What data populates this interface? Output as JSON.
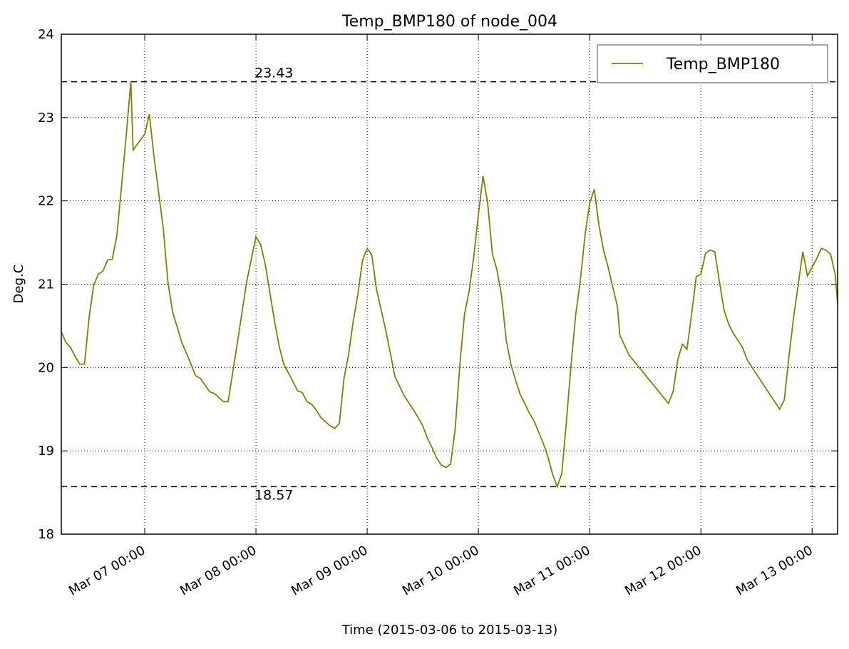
{
  "chart_data": {
    "type": "line",
    "title": "Temp_BMP180 of node_004",
    "xlabel": "Time (2015-03-06 to 2015-03-13)",
    "ylabel": "Deg.C",
    "x": [
      "Mar 06 06:00",
      "Mar 06 07:00",
      "Mar 06 08:00",
      "Mar 06 09:00",
      "Mar 06 10:00",
      "Mar 06 11:00",
      "Mar 06 12:00",
      "Mar 06 13:00",
      "Mar 06 14:00",
      "Mar 06 15:00",
      "Mar 06 16:00",
      "Mar 06 17:00",
      "Mar 06 18:00",
      "Mar 06 19:00",
      "Mar 06 20:00",
      "Mar 06 21:00",
      "Mar 06 21:30",
      "Mar 07 00:00",
      "Mar 07 01:00",
      "Mar 07 02:00",
      "Mar 07 03:00",
      "Mar 07 04:00",
      "Mar 07 05:00",
      "Mar 07 06:00",
      "Mar 07 08:00",
      "Mar 07 10:00",
      "Mar 07 11:00",
      "Mar 07 12:00",
      "Mar 07 14:00",
      "Mar 07 15:00",
      "Mar 07 17:00",
      "Mar 07 18:00",
      "Mar 07 20:00",
      "Mar 07 22:00",
      "Mar 08 00:00",
      "Mar 08 01:00",
      "Mar 08 02:00",
      "Mar 08 04:00",
      "Mar 08 05:00",
      "Mar 08 06:00",
      "Mar 08 08:00",
      "Mar 08 09:00",
      "Mar 08 10:00",
      "Mar 08 11:00",
      "Mar 08 12:00",
      "Mar 08 13:00",
      "Mar 08 14:00",
      "Mar 08 16:00",
      "Mar 08 17:00",
      "Mar 08 18:00",
      "Mar 08 19:00",
      "Mar 08 20:00",
      "Mar 08 21:00",
      "Mar 08 22:00",
      "Mar 08 23:00",
      "Mar 09 00:00",
      "Mar 09 01:00",
      "Mar 09 02:00",
      "Mar 09 04:00",
      "Mar 09 06:00",
      "Mar 09 08:00",
      "Mar 09 10:00",
      "Mar 09 11:00",
      "Mar 09 12:00",
      "Mar 09 13:00",
      "Mar 09 14:00",
      "Mar 09 15:00",
      "Mar 09 16:00",
      "Mar 09 17:00",
      "Mar 09 18:00",
      "Mar 09 19:00",
      "Mar 09 20:00",
      "Mar 09 21:00",
      "Mar 09 22:00",
      "Mar 09 23:00",
      "Mar 10 00:00",
      "Mar 10 01:00",
      "Mar 10 02:00",
      "Mar 10 03:00",
      "Mar 10 04:00",
      "Mar 10 05:00",
      "Mar 10 06:00",
      "Mar 10 07:00",
      "Mar 10 08:00",
      "Mar 10 09:00",
      "Mar 10 10:00",
      "Mar 10 11:00",
      "Mar 10 12:00",
      "Mar 10 14:00",
      "Mar 10 15:00",
      "Mar 10 16:00",
      "Mar 10 17:00",
      "Mar 10 18:00",
      "Mar 10 19:00",
      "Mar 10 20:00",
      "Mar 10 21:00",
      "Mar 10 22:00",
      "Mar 10 23:00",
      "Mar 11 00:00",
      "Mar 11 01:00",
      "Mar 11 02:00",
      "Mar 11 03:00",
      "Mar 11 04:00",
      "Mar 11 06:00",
      "Mar 11 06:30",
      "Mar 11 08:30",
      "Mar 11 17:00",
      "Mar 11 18:00",
      "Mar 11 19:00",
      "Mar 11 20:00",
      "Mar 11 21:00",
      "Mar 11 22:00",
      "Mar 11 23:00",
      "Mar 12 00:00",
      "Mar 12 01:00",
      "Mar 12 02:00",
      "Mar 12 03:00",
      "Mar 12 04:00",
      "Mar 12 05:00",
      "Mar 12 06:00",
      "Mar 12 07:00",
      "Mar 12 09:00",
      "Mar 12 10:00",
      "Mar 12 17:00",
      "Mar 12 18:00",
      "Mar 12 19:00",
      "Mar 12 20:00",
      "Mar 12 21:00",
      "Mar 12 22:00",
      "Mar 12 23:00",
      "Mar 13 00:00",
      "Mar 13 01:00",
      "Mar 13 02:00",
      "Mar 13 03:00",
      "Mar 13 04:00",
      "Mar 13 05:00",
      "Mar 13 05:30"
    ],
    "series": [
      {
        "name": "Temp_BMP180",
        "color": "#808000",
        "values": [
          20.43,
          20.3,
          20.24,
          20.13,
          20.04,
          20.04,
          20.6,
          20.99,
          21.12,
          21.16,
          21.29,
          21.3,
          21.59,
          22.18,
          22.78,
          23.43,
          22.61,
          22.8,
          23.04,
          22.53,
          22.1,
          21.67,
          21.03,
          20.67,
          20.3,
          20.04,
          19.9,
          19.87,
          19.71,
          19.69,
          19.59,
          19.59,
          20.3,
          21.03,
          21.57,
          21.48,
          21.24,
          20.56,
          20.26,
          20.04,
          19.83,
          19.72,
          19.7,
          19.59,
          19.56,
          19.49,
          19.4,
          19.3,
          19.27,
          19.33,
          19.87,
          20.16,
          20.56,
          20.88,
          21.29,
          21.43,
          21.35,
          20.94,
          20.45,
          19.89,
          19.66,
          19.49,
          19.4,
          19.3,
          19.15,
          19.04,
          18.91,
          18.83,
          18.8,
          18.84,
          19.27,
          20.04,
          20.64,
          20.92,
          21.33,
          21.84,
          22.3,
          21.97,
          21.37,
          21.17,
          20.86,
          20.33,
          20.04,
          19.85,
          19.68,
          19.57,
          19.45,
          19.36,
          19.09,
          18.93,
          18.72,
          18.57,
          18.73,
          19.36,
          20.04,
          20.64,
          21.05,
          21.59,
          21.97,
          22.14,
          21.71,
          21.41,
          21.2,
          20.73,
          20.39,
          20.15,
          19.57,
          19.71,
          20.09,
          20.28,
          20.22,
          20.64,
          21.09,
          21.12,
          21.37,
          21.41,
          21.39,
          21.03,
          20.69,
          20.52,
          20.41,
          20.24,
          20.09,
          19.5,
          19.61,
          20.13,
          20.6,
          20.99,
          21.39,
          21.1,
          21.2,
          21.31,
          21.43,
          21.41,
          21.36,
          21.11,
          20.77
        ]
      }
    ],
    "hlines": [
      23.43,
      18.57
    ],
    "xlim": [
      "Mar 06 06:00",
      "Mar 13 05:30"
    ],
    "xticks": [
      "Mar 07 00:00",
      "Mar 08 00:00",
      "Mar 09 00:00",
      "Mar 10 00:00",
      "Mar 11 00:00",
      "Mar 12 00:00",
      "Mar 13 00:00"
    ],
    "ylim": [
      18,
      24
    ],
    "yticks": [
      18,
      19,
      20,
      21,
      22,
      23,
      24
    ],
    "grid": true,
    "legend": "upper right"
  }
}
